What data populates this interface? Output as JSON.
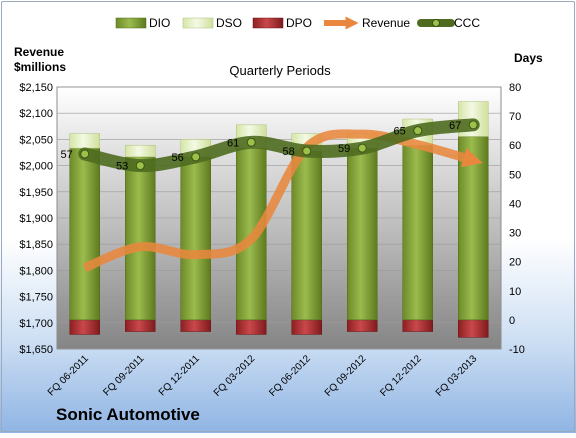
{
  "chart_data": {
    "type": "bar",
    "title": "Quarterly Periods",
    "company": "Sonic Automotive",
    "y_left_label": [
      "Revenue",
      "$millions"
    ],
    "y_right_label": "Days",
    "categories": [
      "FQ 06-2011",
      "FQ 09-2011",
      "FQ 12-2011",
      "FQ 03-2012",
      "FQ 06-2012",
      "FQ 09-2012",
      "FQ 12-2012",
      "FQ 03-2013"
    ],
    "y_left_ticks": [
      "$1,650",
      "$1,700",
      "$1,750",
      "$1,800",
      "$1,850",
      "$1,900",
      "$1,950",
      "$2,000",
      "$2,050",
      "$2,100",
      "$2,150"
    ],
    "y_left_range": [
      1650,
      2150
    ],
    "y_right_ticks": [
      "-10",
      "0",
      "10",
      "20",
      "30",
      "40",
      "50",
      "60",
      "70",
      "80"
    ],
    "y_right_range": [
      -10,
      80
    ],
    "legend": [
      {
        "key": "DIO",
        "label": "DIO"
      },
      {
        "key": "DSO",
        "label": "DSO"
      },
      {
        "key": "DPO",
        "label": "DPO"
      },
      {
        "key": "Revenue",
        "label": "Revenue"
      },
      {
        "key": "CCC",
        "label": "CCC"
      }
    ],
    "series": {
      "DIO": [
        59,
        56,
        56,
        59,
        58,
        59,
        60,
        63
      ],
      "DSO": [
        5,
        4,
        6,
        8,
        6,
        5,
        9,
        12
      ],
      "DPO": [
        -5,
        -4,
        -4,
        -5,
        -5,
        -4,
        -4,
        -6
      ],
      "Revenue": [
        1805,
        1845,
        1830,
        1860,
        2035,
        2060,
        2040,
        2010
      ],
      "CCC": [
        57,
        53,
        56,
        61,
        58,
        59,
        65,
        67
      ]
    },
    "ccc_labels": [
      "57",
      "53",
      "56",
      "61",
      "58",
      "59",
      "65",
      "67"
    ],
    "colors": {
      "DIO": "#7e9b33",
      "DSO": "#e4efc2",
      "DPO": "#a9282c",
      "Revenue": "#e8873d",
      "CCC": "#4e6b1f",
      "plot_top": "#ffffff",
      "plot_bottom": "#7f7f7f"
    }
  }
}
